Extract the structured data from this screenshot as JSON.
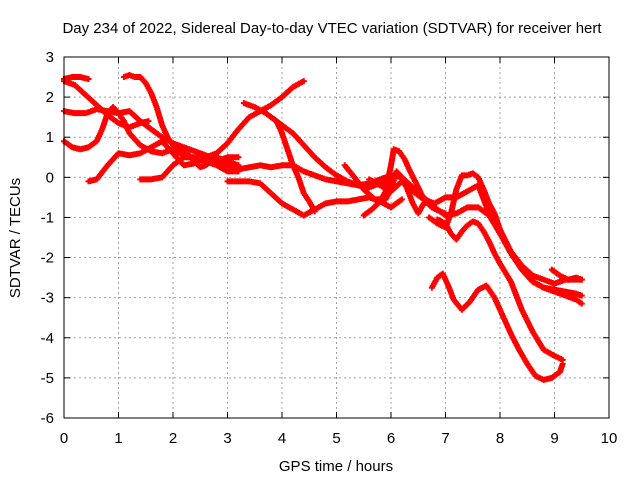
{
  "chart_data": {
    "type": "scatter",
    "title": "Day 234 of 2022, Sidereal Day-to-day VTEC variation (SDTVAR) for receiver hert",
    "xlabel": "GPS time / hours",
    "ylabel": "SDTVAR / TECUs",
    "xlim": [
      0,
      10
    ],
    "ylim": [
      -6,
      3
    ],
    "xticks": [
      0,
      1,
      2,
      3,
      4,
      5,
      6,
      7,
      8,
      9,
      10
    ],
    "yticks": [
      -6,
      -5,
      -4,
      -3,
      -2,
      -1,
      0,
      1,
      2,
      3
    ],
    "grid": true,
    "marker": "+",
    "color": "#ff0000",
    "series": [
      {
        "name": "arc-1",
        "points": [
          [
            0.0,
            2.4
          ],
          [
            0.2,
            2.3
          ],
          [
            0.4,
            2.05
          ],
          [
            0.6,
            1.8
          ],
          [
            0.8,
            1.55
          ],
          [
            1.0,
            1.35
          ],
          [
            1.2,
            1.25
          ],
          [
            1.4,
            1.35
          ],
          [
            1.55,
            1.4
          ]
        ]
      },
      {
        "name": "arc-2",
        "points": [
          [
            0.0,
            2.45
          ],
          [
            0.15,
            2.5
          ],
          [
            0.3,
            2.5
          ],
          [
            0.45,
            2.45
          ]
        ]
      },
      {
        "name": "arc-3",
        "points": [
          [
            0.0,
            1.65
          ],
          [
            0.2,
            1.6
          ],
          [
            0.4,
            1.6
          ],
          [
            0.6,
            1.7
          ],
          [
            0.8,
            1.65
          ],
          [
            1.0,
            1.6
          ],
          [
            1.2,
            1.65
          ],
          [
            1.4,
            1.4
          ],
          [
            1.6,
            1.2
          ],
          [
            1.8,
            1.0
          ],
          [
            2.0,
            0.85
          ],
          [
            2.2,
            0.75
          ],
          [
            2.4,
            0.65
          ],
          [
            2.6,
            0.55
          ],
          [
            2.8,
            0.4
          ],
          [
            3.0,
            0.3
          ],
          [
            3.2,
            0.2
          ],
          [
            3.4,
            0.25
          ],
          [
            3.6,
            0.3
          ],
          [
            3.8,
            0.25
          ],
          [
            4.0,
            0.3
          ],
          [
            4.2,
            0.3
          ],
          [
            4.4,
            0.15
          ],
          [
            4.6,
            0.05
          ],
          [
            4.8,
            -0.05
          ],
          [
            5.0,
            -0.1
          ],
          [
            5.2,
            -0.15
          ],
          [
            5.4,
            -0.2
          ],
          [
            5.6,
            -0.25
          ],
          [
            5.8,
            -0.15
          ],
          [
            6.0,
            -0.1
          ]
        ]
      },
      {
        "name": "arc-4",
        "points": [
          [
            0.0,
            0.9
          ],
          [
            0.15,
            0.75
          ],
          [
            0.3,
            0.7
          ],
          [
            0.45,
            0.75
          ],
          [
            0.6,
            0.9
          ],
          [
            0.7,
            1.2
          ],
          [
            0.8,
            1.6
          ],
          [
            0.9,
            1.75
          ],
          [
            1.0,
            1.6
          ],
          [
            1.1,
            1.4
          ],
          [
            1.2,
            1.1
          ],
          [
            1.4,
            0.8
          ],
          [
            1.6,
            0.65
          ],
          [
            1.8,
            0.6
          ],
          [
            2.0,
            0.7
          ],
          [
            2.2,
            0.55
          ],
          [
            2.4,
            0.45
          ],
          [
            2.6,
            0.4
          ],
          [
            2.8,
            0.3
          ],
          [
            3.0,
            0.15
          ],
          [
            3.2,
            0.15
          ]
        ]
      },
      {
        "name": "arc-5",
        "points": [
          [
            0.45,
            -0.1
          ],
          [
            0.6,
            -0.05
          ],
          [
            0.8,
            0.3
          ],
          [
            1.0,
            0.6
          ],
          [
            1.2,
            0.55
          ],
          [
            1.4,
            0.6
          ],
          [
            1.6,
            0.75
          ],
          [
            1.8,
            0.9
          ],
          [
            2.0,
            0.6
          ],
          [
            2.2,
            0.3
          ],
          [
            2.4,
            0.35
          ],
          [
            2.6,
            0.5
          ],
          [
            2.8,
            0.5
          ],
          [
            3.0,
            0.4
          ],
          [
            3.2,
            0.3
          ]
        ]
      },
      {
        "name": "arc-6",
        "points": [
          [
            1.1,
            2.5
          ],
          [
            1.2,
            2.55
          ],
          [
            1.3,
            2.5
          ],
          [
            1.4,
            2.5
          ],
          [
            1.5,
            2.35
          ],
          [
            1.6,
            2.1
          ],
          [
            1.7,
            1.75
          ],
          [
            1.8,
            1.3
          ],
          [
            1.9,
            1.0
          ],
          [
            2.0,
            0.8
          ],
          [
            2.1,
            0.7
          ],
          [
            2.2,
            0.65
          ],
          [
            2.3,
            0.55
          ],
          [
            2.4,
            0.4
          ],
          [
            2.5,
            0.25
          ],
          [
            2.6,
            0.3
          ],
          [
            2.7,
            0.4
          ],
          [
            2.8,
            0.35
          ],
          [
            2.9,
            0.45
          ],
          [
            3.0,
            0.5
          ],
          [
            3.2,
            0.5
          ]
        ]
      },
      {
        "name": "arc-7",
        "points": [
          [
            1.4,
            -0.05
          ],
          [
            1.6,
            -0.05
          ],
          [
            1.8,
            0.0
          ],
          [
            2.0,
            0.3
          ],
          [
            2.2,
            0.5
          ],
          [
            2.4,
            0.5
          ],
          [
            2.6,
            0.5
          ],
          [
            2.8,
            0.6
          ],
          [
            3.0,
            0.85
          ],
          [
            3.2,
            1.2
          ],
          [
            3.4,
            1.5
          ],
          [
            3.6,
            1.65
          ],
          [
            3.8,
            1.8
          ],
          [
            4.0,
            2.0
          ],
          [
            4.2,
            2.25
          ],
          [
            4.4,
            2.4
          ]
        ]
      },
      {
        "name": "arc-8",
        "points": [
          [
            3.0,
            -0.1
          ],
          [
            3.2,
            -0.1
          ],
          [
            3.4,
            -0.1
          ],
          [
            3.6,
            -0.15
          ],
          [
            3.8,
            -0.4
          ],
          [
            4.0,
            -0.65
          ],
          [
            4.2,
            -0.8
          ],
          [
            4.4,
            -0.95
          ],
          [
            4.6,
            -0.8
          ],
          [
            4.8,
            -0.65
          ],
          [
            5.0,
            -0.6
          ],
          [
            5.2,
            -0.6
          ],
          [
            5.4,
            -0.55
          ],
          [
            5.6,
            -0.5
          ],
          [
            5.8,
            -0.6
          ],
          [
            6.0,
            -0.75
          ],
          [
            6.2,
            -0.55
          ]
        ]
      },
      {
        "name": "arc-9",
        "points": [
          [
            3.3,
            1.85
          ],
          [
            3.5,
            1.75
          ],
          [
            3.7,
            1.6
          ],
          [
            3.9,
            1.4
          ],
          [
            4.0,
            1.1
          ],
          [
            4.1,
            0.7
          ],
          [
            4.2,
            0.3
          ],
          [
            4.3,
            0.0
          ],
          [
            4.4,
            -0.4
          ],
          [
            4.5,
            -0.6
          ],
          [
            4.6,
            -0.85
          ]
        ]
      },
      {
        "name": "arc-10",
        "points": [
          [
            3.8,
            1.5
          ],
          [
            4.0,
            1.3
          ],
          [
            4.2,
            1.1
          ],
          [
            4.4,
            0.8
          ],
          [
            4.6,
            0.5
          ],
          [
            4.8,
            0.25
          ],
          [
            5.0,
            0.05
          ],
          [
            5.2,
            -0.1
          ],
          [
            5.4,
            -0.2
          ],
          [
            5.6,
            -0.15
          ],
          [
            5.8,
            -0.05
          ],
          [
            6.0,
            0.05
          ],
          [
            6.2,
            0.0
          ],
          [
            6.4,
            -0.25
          ],
          [
            6.6,
            -0.5
          ],
          [
            6.8,
            -0.75
          ],
          [
            7.0,
            -0.95
          ],
          [
            7.2,
            -0.9
          ],
          [
            7.4,
            -0.75
          ],
          [
            7.6,
            -0.75
          ],
          [
            7.8,
            -0.95
          ],
          [
            8.0,
            -1.4
          ],
          [
            8.2,
            -1.9
          ],
          [
            8.4,
            -2.3
          ],
          [
            8.6,
            -2.6
          ],
          [
            8.8,
            -2.75
          ],
          [
            9.0,
            -2.8
          ],
          [
            9.2,
            -2.85
          ],
          [
            9.4,
            -2.9
          ],
          [
            9.5,
            -2.95
          ]
        ]
      },
      {
        "name": "arc-11",
        "points": [
          [
            5.15,
            0.3
          ],
          [
            5.3,
            0.05
          ],
          [
            5.5,
            -0.3
          ],
          [
            5.7,
            -0.55
          ],
          [
            5.9,
            -0.55
          ],
          [
            6.0,
            -0.3
          ],
          [
            6.1,
            0.15
          ],
          [
            6.2,
            0.0
          ],
          [
            6.3,
            -0.3
          ],
          [
            6.4,
            -0.65
          ],
          [
            6.5,
            -0.9
          ],
          [
            6.6,
            -0.65
          ],
          [
            6.7,
            -0.6
          ]
        ]
      },
      {
        "name": "arc-12",
        "points": [
          [
            5.5,
            -0.95
          ],
          [
            5.65,
            -0.8
          ],
          [
            5.8,
            -0.6
          ],
          [
            5.9,
            -0.35
          ],
          [
            6.0,
            0.3
          ],
          [
            6.05,
            0.7
          ],
          [
            6.15,
            0.65
          ],
          [
            6.25,
            0.45
          ],
          [
            6.35,
            0.15
          ],
          [
            6.5,
            -0.25
          ],
          [
            6.6,
            -0.55
          ],
          [
            6.75,
            -0.75
          ],
          [
            6.9,
            -0.85
          ],
          [
            7.0,
            -0.9
          ]
        ]
      },
      {
        "name": "arc-13",
        "points": [
          [
            5.6,
            -0.05
          ],
          [
            5.8,
            -0.2
          ],
          [
            6.0,
            -0.35
          ],
          [
            6.2,
            -0.1
          ],
          [
            6.4,
            -0.35
          ],
          [
            6.6,
            -0.55
          ],
          [
            6.8,
            -0.65
          ],
          [
            7.0,
            -0.5
          ],
          [
            7.2,
            -0.5
          ],
          [
            7.4,
            -0.35
          ],
          [
            7.6,
            -0.2
          ],
          [
            7.8,
            -0.9
          ],
          [
            8.0,
            -1.4
          ],
          [
            8.2,
            -1.85
          ],
          [
            8.4,
            -2.2
          ],
          [
            8.6,
            -2.45
          ],
          [
            8.8,
            -2.55
          ],
          [
            9.0,
            -2.65
          ],
          [
            9.2,
            -2.55
          ],
          [
            9.4,
            -2.55
          ],
          [
            9.5,
            -2.55
          ]
        ]
      },
      {
        "name": "arc-14",
        "points": [
          [
            6.7,
            -1.0
          ],
          [
            6.85,
            -1.15
          ],
          [
            7.0,
            -1.25
          ],
          [
            7.1,
            -0.9
          ],
          [
            7.2,
            -0.3
          ],
          [
            7.3,
            0.05
          ],
          [
            7.4,
            0.05
          ],
          [
            7.5,
            0.1
          ],
          [
            7.6,
            0.0
          ],
          [
            7.7,
            -0.3
          ],
          [
            7.8,
            -0.65
          ],
          [
            7.9,
            -0.9
          ],
          [
            8.0,
            -1.3
          ],
          [
            8.2,
            -1.85
          ],
          [
            8.4,
            -2.3
          ],
          [
            8.6,
            -2.6
          ],
          [
            8.8,
            -2.75
          ],
          [
            9.0,
            -2.85
          ],
          [
            9.2,
            -2.95
          ],
          [
            9.4,
            -3.05
          ],
          [
            9.5,
            -3.15
          ]
        ]
      },
      {
        "name": "arc-15",
        "points": [
          [
            6.85,
            -1.05
          ],
          [
            7.0,
            -1.15
          ],
          [
            7.1,
            -1.4
          ],
          [
            7.2,
            -1.55
          ],
          [
            7.3,
            -1.35
          ],
          [
            7.4,
            -1.2
          ],
          [
            7.5,
            -1.1
          ],
          [
            7.6,
            -1.15
          ],
          [
            7.7,
            -1.35
          ],
          [
            7.8,
            -1.6
          ],
          [
            7.9,
            -1.9
          ],
          [
            8.0,
            -2.15
          ],
          [
            8.2,
            -2.6
          ],
          [
            8.4,
            -3.3
          ],
          [
            8.6,
            -3.85
          ],
          [
            8.8,
            -4.3
          ],
          [
            9.0,
            -4.45
          ],
          [
            9.15,
            -4.55
          ]
        ]
      },
      {
        "name": "arc-16",
        "points": [
          [
            6.75,
            -2.75
          ],
          [
            6.85,
            -2.5
          ],
          [
            6.95,
            -2.4
          ],
          [
            7.05,
            -2.7
          ],
          [
            7.15,
            -3.05
          ],
          [
            7.3,
            -3.3
          ],
          [
            7.45,
            -3.1
          ],
          [
            7.6,
            -2.8
          ],
          [
            7.75,
            -2.7
          ],
          [
            7.9,
            -3.0
          ],
          [
            8.05,
            -3.45
          ],
          [
            8.2,
            -3.9
          ],
          [
            8.35,
            -4.3
          ],
          [
            8.5,
            -4.65
          ],
          [
            8.65,
            -4.95
          ],
          [
            8.8,
            -5.05
          ],
          [
            8.95,
            -5.0
          ],
          [
            9.1,
            -4.85
          ],
          [
            9.15,
            -4.65
          ]
        ]
      },
      {
        "name": "arc-17",
        "points": [
          [
            8.95,
            -2.3
          ],
          [
            9.1,
            -2.45
          ],
          [
            9.25,
            -2.55
          ],
          [
            9.4,
            -2.5
          ],
          [
            9.5,
            -2.55
          ]
        ]
      }
    ]
  }
}
